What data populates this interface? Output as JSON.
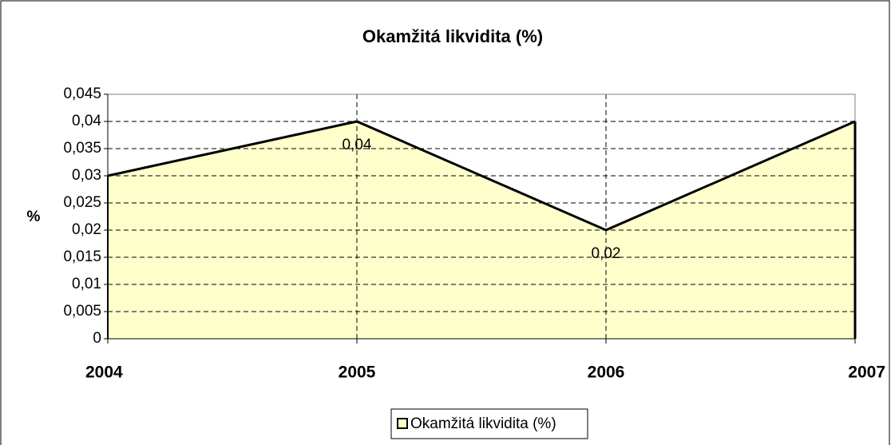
{
  "chart_data": {
    "type": "area",
    "title": "Okamžitá likvidita (%)",
    "y_label": "%",
    "categories": [
      "2004",
      "2005",
      "2006",
      "2007"
    ],
    "series": [
      {
        "name": "Okamžitá likvidita (%)",
        "color": "#ffffcc",
        "line_color": "#000000",
        "values": [
          0.03,
          0.04,
          0.02,
          0.04
        ],
        "value_labels": [
          null,
          "0,04",
          "0,02",
          null
        ]
      }
    ],
    "ylim": [
      0,
      0.045
    ],
    "yticks": [
      0,
      {
        "value": 0.005,
        "label": "0,005"
      },
      {
        "value": 0.01,
        "label": "0,01"
      },
      {
        "value": 0.015,
        "label": "0,015"
      },
      {
        "value": 0.02,
        "label": "0,02"
      },
      {
        "value": 0.025,
        "label": "0,025"
      },
      {
        "value": 0.03,
        "label": "0,03"
      },
      {
        "value": 0.035,
        "label": "0,035"
      },
      {
        "value": 0.04,
        "label": "0,04"
      },
      {
        "value": 0.045,
        "label": "0,045"
      }
    ],
    "grid": true,
    "legend": "bottom"
  }
}
